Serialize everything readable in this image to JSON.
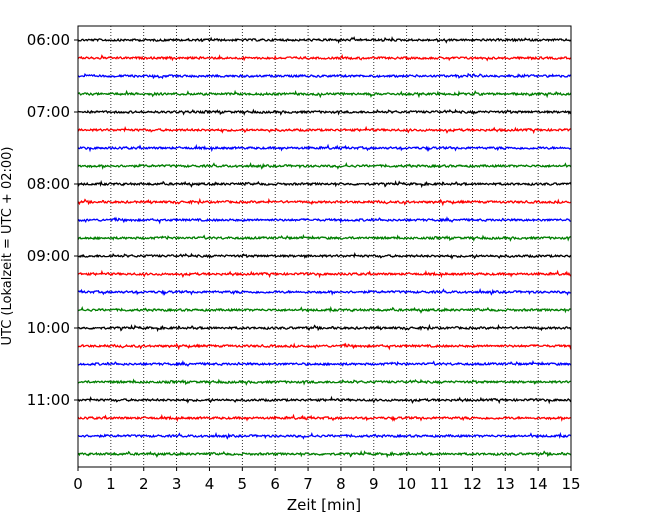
{
  "chart_data": {
    "type": "line",
    "title": "",
    "xlabel": "Zeit  [min]",
    "ylabel": "UTC (Lokalzeit = UTC + 02:00)",
    "xlim": [
      0,
      15
    ],
    "x_ticks": [
      "0",
      "1",
      "2",
      "3",
      "4",
      "5",
      "6",
      "7",
      "8",
      "9",
      "10",
      "11",
      "12",
      "13",
      "14",
      "15"
    ],
    "y_ticks": [
      "06:00",
      "07:00",
      "08:00",
      "09:00",
      "10:00",
      "11:00"
    ],
    "grid": "vertical dotted lines at each minute",
    "trace_minutes": 15,
    "trace_colors": [
      "#000000",
      "#ff0000",
      "#0000ff",
      "#007f00"
    ],
    "traces": [
      {
        "start": "06:00",
        "color": "#000000"
      },
      {
        "start": "06:15",
        "color": "#ff0000"
      },
      {
        "start": "06:30",
        "color": "#0000ff"
      },
      {
        "start": "06:45",
        "color": "#007f00"
      },
      {
        "start": "07:00",
        "color": "#000000"
      },
      {
        "start": "07:15",
        "color": "#ff0000"
      },
      {
        "start": "07:30",
        "color": "#0000ff"
      },
      {
        "start": "07:45",
        "color": "#007f00"
      },
      {
        "start": "08:00",
        "color": "#000000"
      },
      {
        "start": "08:15",
        "color": "#ff0000"
      },
      {
        "start": "08:30",
        "color": "#0000ff"
      },
      {
        "start": "08:45",
        "color": "#007f00"
      },
      {
        "start": "09:00",
        "color": "#000000"
      },
      {
        "start": "09:15",
        "color": "#ff0000"
      },
      {
        "start": "09:30",
        "color": "#0000ff"
      },
      {
        "start": "09:45",
        "color": "#007f00"
      },
      {
        "start": "10:00",
        "color": "#000000"
      },
      {
        "start": "10:15",
        "color": "#ff0000"
      },
      {
        "start": "10:30",
        "color": "#0000ff"
      },
      {
        "start": "10:45",
        "color": "#007f00"
      },
      {
        "start": "11:00",
        "color": "#000000"
      },
      {
        "start": "11:15",
        "color": "#ff0000"
      },
      {
        "start": "11:30",
        "color": "#0000ff"
      },
      {
        "start": "11:45",
        "color": "#007f00"
      }
    ]
  }
}
